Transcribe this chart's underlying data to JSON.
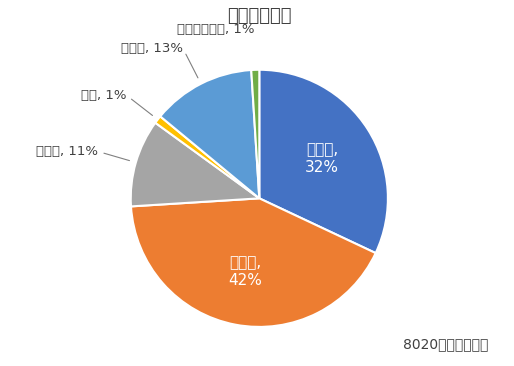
{
  "title": "歯を失う理由",
  "slices": [
    {
      "label": "むし歯,\n32%",
      "value": 32,
      "color": "#4472C4",
      "text_color": "white",
      "inside": true
    },
    {
      "label": "歯周病,\n42%",
      "value": 42,
      "color": "#ED7D31",
      "text_color": "white",
      "inside": true
    },
    {
      "label": "破せつ, 11%",
      "value": 11,
      "color": "#A5A5A5",
      "text_color": "#404040",
      "inside": false
    },
    {
      "label": "矯正, 1%",
      "value": 1,
      "color": "#FFC000",
      "text_color": "#404040",
      "inside": false
    },
    {
      "label": "その他, 13%",
      "value": 13,
      "color": "#5B9BD5",
      "text_color": "#404040",
      "inside": false
    },
    {
      "label": "無回答・無効, 1%",
      "value": 1,
      "color": "#70AD47",
      "text_color": "#404040",
      "inside": false
    }
  ],
  "source_text": "8020推進財団調査",
  "background_color": "#FFFFFF",
  "title_fontsize": 13,
  "label_fontsize": 9.5,
  "inside_label_fontsize": 11
}
